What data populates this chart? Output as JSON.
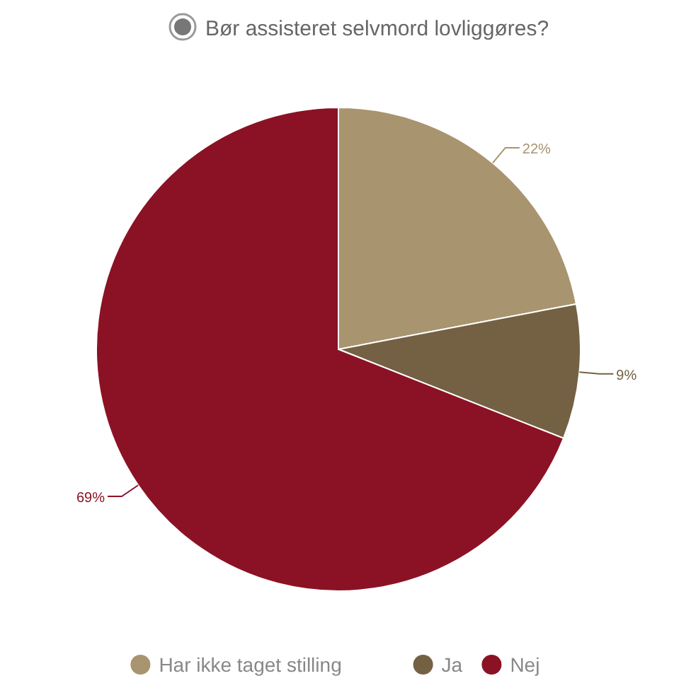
{
  "chart_data": {
    "type": "pie",
    "title": "Bør assisteret selvmord lovliggøres?",
    "categories": [
      "Har ikke taget stilling",
      "Ja",
      "Nej"
    ],
    "values": [
      22,
      9,
      69
    ],
    "colors": [
      "#a8946f",
      "#746144",
      "#8b1224"
    ],
    "value_labels": [
      "22%",
      "9%",
      "69%"
    ],
    "legend": "bottom"
  }
}
